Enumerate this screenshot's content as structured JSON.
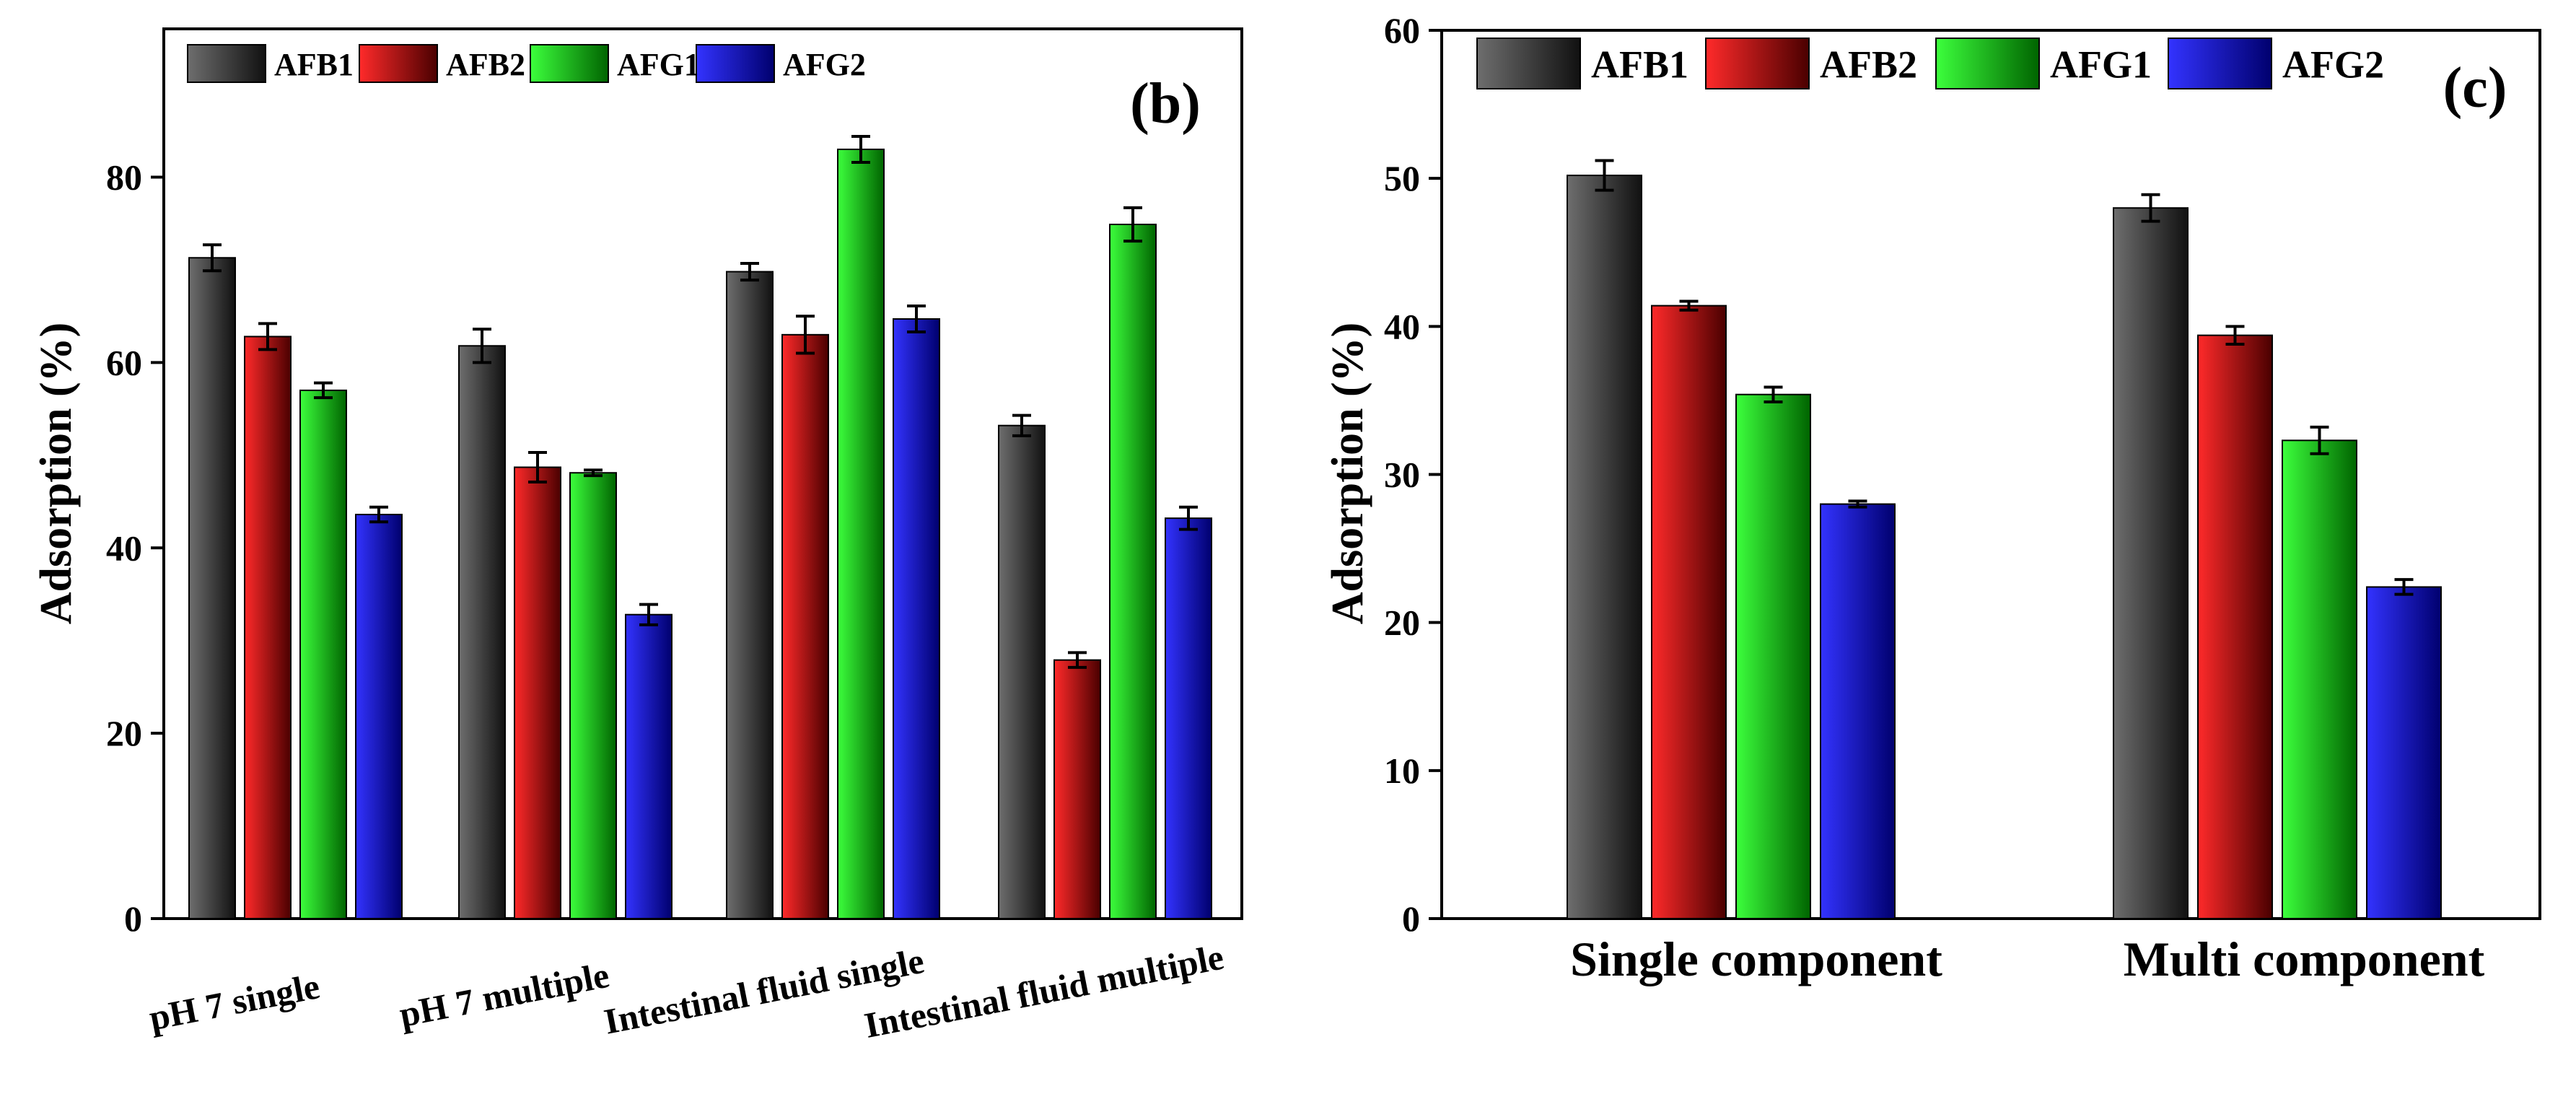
{
  "chart_data": [
    {
      "type": "bar",
      "panel_label": "(b)",
      "ylabel": "Adsorption (%)",
      "xlabel": "",
      "ylim": [
        0,
        96
      ],
      "yticks": [
        0,
        20,
        40,
        60,
        80
      ],
      "categories": [
        "pH 7 single",
        "pH 7 multiple",
        "Intestinal fluid single",
        "Intestinal fluid multiple"
      ],
      "series": [
        {
          "name": "AFB1",
          "values": [
            71.3,
            61.8,
            69.8,
            53.2
          ],
          "errors": [
            1.4,
            1.8,
            0.9,
            1.1
          ]
        },
        {
          "name": "AFB2",
          "values": [
            62.8,
            48.7,
            63.0,
            27.9
          ],
          "errors": [
            1.4,
            1.6,
            2.0,
            0.8
          ]
        },
        {
          "name": "AFG1",
          "values": [
            57.0,
            48.1,
            83.0,
            74.9
          ],
          "errors": [
            0.8,
            0.3,
            1.4,
            1.8
          ]
        },
        {
          "name": "AFG2",
          "values": [
            43.6,
            32.8,
            64.7,
            43.2
          ],
          "errors": [
            0.8,
            1.1,
            1.4,
            1.2
          ]
        }
      ],
      "legend_position": "top-left"
    },
    {
      "type": "bar",
      "panel_label": "(c)",
      "ylabel": "Adsorption (%)",
      "xlabel": "",
      "ylim": [
        0,
        60
      ],
      "yticks": [
        0,
        10,
        20,
        30,
        40,
        50,
        60
      ],
      "categories": [
        "Single component",
        "Multi component"
      ],
      "series": [
        {
          "name": "AFB1",
          "values": [
            50.2,
            48.0
          ],
          "errors": [
            1.0,
            0.9
          ]
        },
        {
          "name": "AFB2",
          "values": [
            41.4,
            39.4
          ],
          "errors": [
            0.3,
            0.6
          ]
        },
        {
          "name": "AFG1",
          "values": [
            35.4,
            32.3
          ],
          "errors": [
            0.5,
            0.9
          ]
        },
        {
          "name": "AFG2",
          "values": [
            28.0,
            22.4
          ],
          "errors": [
            0.2,
            0.5
          ]
        }
      ],
      "legend_position": "top"
    }
  ],
  "colors": {
    "AFB1": {
      "light": "#6e6e6e",
      "dark": "#111111"
    },
    "AFB2": {
      "light": "#ff2a2a",
      "dark": "#4a0000"
    },
    "AFG1": {
      "light": "#3cff3c",
      "dark": "#006400"
    },
    "AFG2": {
      "light": "#3333ff",
      "dark": "#00006e"
    }
  }
}
